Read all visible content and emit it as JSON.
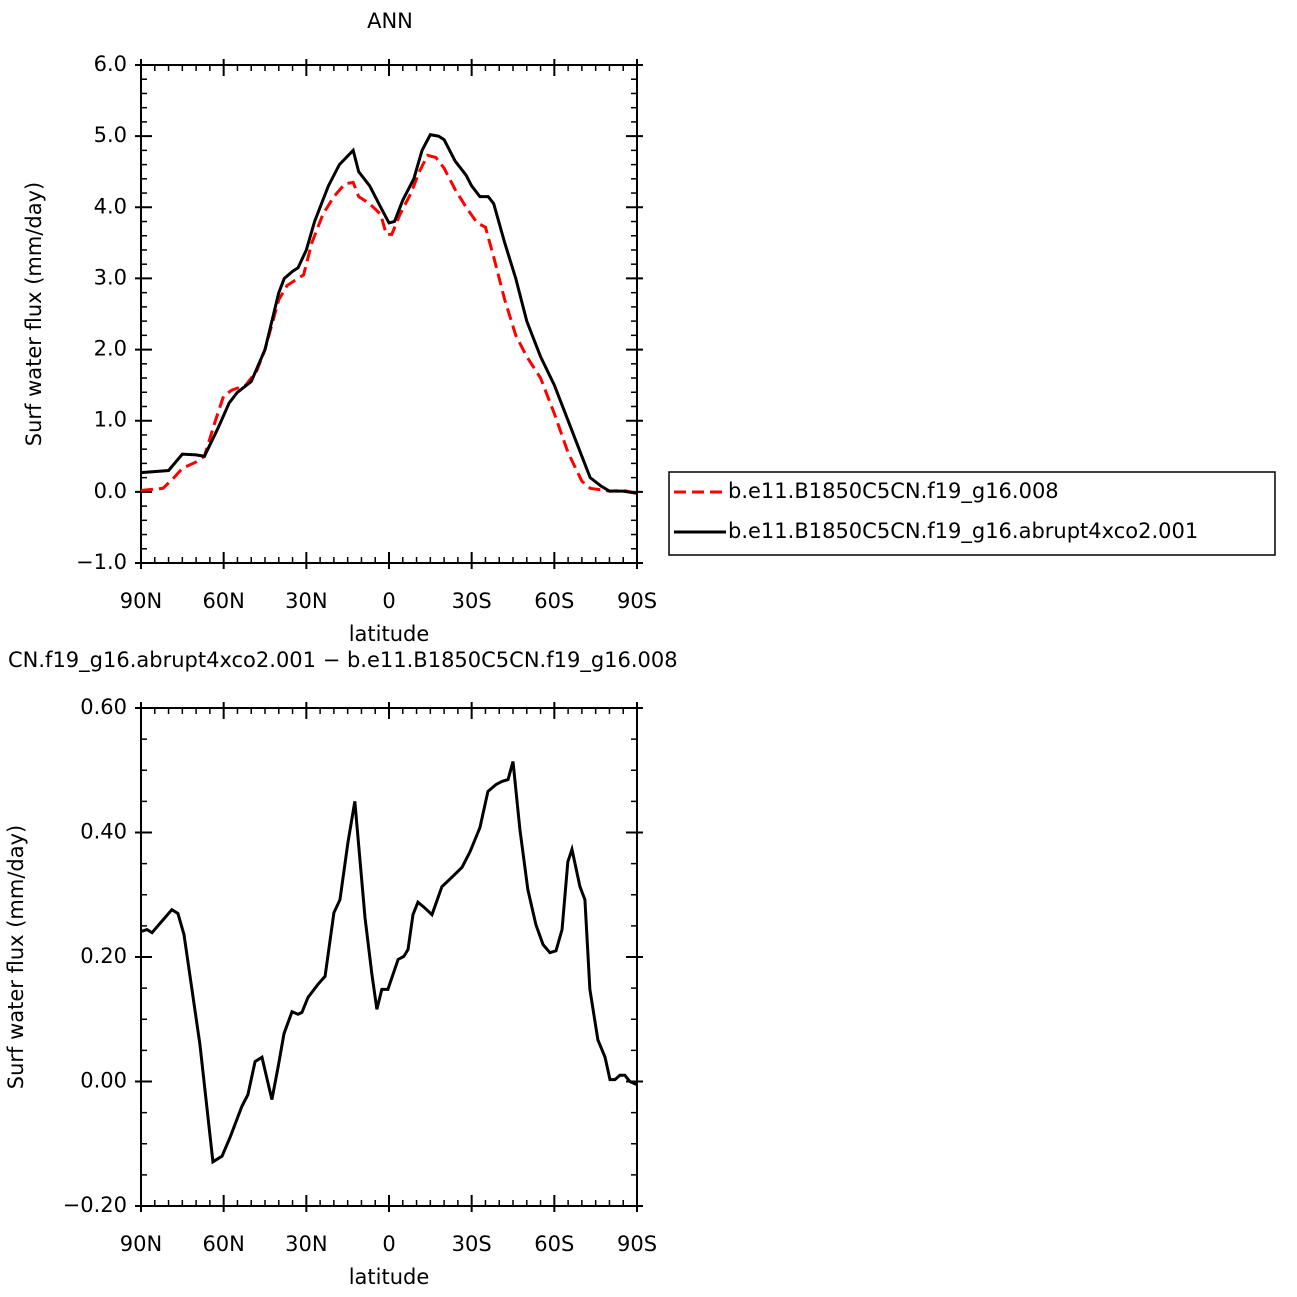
{
  "chart_data": [
    {
      "type": "line",
      "title": "ANN",
      "xlabel": "latitude",
      "ylabel": "Surf water flux (mm/day)",
      "xlim": [
        90,
        -90
      ],
      "xticks": [
        {
          "value": 90,
          "label": "90N"
        },
        {
          "value": 60,
          "label": "60N"
        },
        {
          "value": 30,
          "label": "30N"
        },
        0,
        {
          "value": -30,
          "label": "30S"
        },
        {
          "value": -60,
          "label": "60S"
        },
        {
          "value": -90,
          "label": "90S"
        }
      ],
      "ylim": [
        -1,
        6
      ],
      "yticks": [
        {
          "value": -1,
          "label": "−1.0"
        },
        {
          "value": 0,
          "label": "0.0"
        },
        {
          "value": 1,
          "label": "1.0"
        },
        {
          "value": 2,
          "label": "2.0"
        },
        {
          "value": 3,
          "label": "3.0"
        },
        {
          "value": 4,
          "label": "4.0"
        },
        {
          "value": 5,
          "label": "5.0"
        },
        {
          "value": 6,
          "label": "6.0"
        }
      ],
      "legend": "right",
      "series": [
        {
          "name": "b.e11.B1850C5CN.f19_g16.008",
          "color": "#ff0000",
          "line_style": "dashed",
          "x": [
            90,
            82,
            78,
            75,
            70,
            67,
            63,
            60,
            57,
            52,
            48,
            45,
            40,
            37,
            33,
            31,
            28,
            24,
            20,
            16,
            13,
            11,
            7,
            3,
            1,
            -1,
            -4,
            -8,
            -11,
            -14,
            -17,
            -20,
            -24,
            -28,
            -32,
            -35,
            -38,
            -42,
            -46,
            -50,
            -55,
            -60,
            -65,
            -70,
            -73,
            -80,
            -85,
            -90
          ],
          "values": [
            0.02,
            0.05,
            0.2,
            0.33,
            0.42,
            0.5,
            1.0,
            1.35,
            1.43,
            1.5,
            1.7,
            2.0,
            2.7,
            2.9,
            3.0,
            3.05,
            3.5,
            3.9,
            4.15,
            4.33,
            4.35,
            4.15,
            4.05,
            3.9,
            3.62,
            3.62,
            3.9,
            4.2,
            4.5,
            4.73,
            4.7,
            4.55,
            4.25,
            4.0,
            3.78,
            3.72,
            3.3,
            2.7,
            2.2,
            1.9,
            1.6,
            1.1,
            0.55,
            0.15,
            0.05,
            0.01,
            0.02,
            -0.02
          ]
        },
        {
          "name": "b.e11.B1850C5CN.f19_g16.abrupt4xco2.001",
          "color": "#000000",
          "line_style": "solid",
          "x": [
            90,
            80,
            75,
            70,
            67,
            62,
            58,
            55,
            50,
            45,
            40,
            38,
            35,
            33,
            30,
            27,
            22,
            18,
            13,
            11,
            7,
            3,
            0,
            -2,
            -5,
            -9,
            -12,
            -15,
            -18,
            -20,
            -24,
            -28,
            -30,
            -33,
            -36,
            -38,
            -42,
            -46,
            -50,
            -55,
            -60,
            -65,
            -70,
            -73,
            -77,
            -80,
            -85,
            -90
          ],
          "values": [
            0.27,
            0.3,
            0.53,
            0.52,
            0.5,
            0.9,
            1.25,
            1.4,
            1.55,
            2.0,
            2.8,
            3.0,
            3.1,
            3.15,
            3.4,
            3.8,
            4.3,
            4.6,
            4.8,
            4.5,
            4.3,
            4.0,
            3.78,
            3.8,
            4.1,
            4.4,
            4.8,
            5.02,
            5.0,
            4.95,
            4.65,
            4.45,
            4.3,
            4.15,
            4.15,
            4.05,
            3.5,
            3.0,
            2.4,
            1.9,
            1.5,
            1.0,
            0.5,
            0.2,
            0.08,
            0.01,
            0.01,
            -0.02
          ]
        }
      ]
    },
    {
      "type": "line",
      "title": "CN.f19_g16.abrupt4xco2.001 − b.e11.B1850C5CN.f19_g16.008",
      "xlabel": "latitude",
      "ylabel": "Surf water flux (mm/day)",
      "xlim": [
        90,
        -90
      ],
      "xticks": [
        {
          "value": 90,
          "label": "90N"
        },
        {
          "value": 60,
          "label": "60N"
        },
        {
          "value": 30,
          "label": "30N"
        },
        0,
        {
          "value": -30,
          "label": "30S"
        },
        {
          "value": -60,
          "label": "60S"
        },
        {
          "value": -90,
          "label": "90S"
        }
      ],
      "ylim": [
        -0.2,
        0.6
      ],
      "yticks": [
        {
          "value": -0.2,
          "label": "−0.20"
        },
        {
          "value": 0,
          "label": "0.00"
        },
        {
          "value": 0.2,
          "label": "0.20"
        },
        {
          "value": 0.4,
          "label": "0.40"
        },
        {
          "value": 0.6,
          "label": "0.60"
        }
      ],
      "series": [
        {
          "color": "#000000",
          "line_style": "solid",
          "x": [
            90,
            87.8,
            86,
            83.1,
            78.8,
            76.6,
            74.4,
            68.6,
            63.9,
            60.6,
            57.7,
            53.4,
            51.2,
            48.6,
            46.1,
            42.5,
            40.3,
            38.1,
            35.2,
            33,
            31.6,
            29.4,
            25.8,
            23.2,
            20,
            17.8,
            14.9,
            12.4,
            8.7,
            6.2,
            4.4,
            2.6,
            0.4,
            -3.3,
            -5.4,
            -6.9,
            -8.7,
            -10.5,
            -12.7,
            -15.6,
            -19.2,
            -22.8,
            -26.5,
            -29.4,
            -33,
            -35.9,
            -38.8,
            -41,
            -43.2,
            -45,
            -47.5,
            -50.4,
            -53.3,
            -55.9,
            -58.4,
            -60.6,
            -62.8,
            -64.9,
            -66.4,
            -69.3,
            -71.1,
            -72.9,
            -75.8,
            -78.4,
            -80.2,
            -82,
            -83.8,
            -85.6,
            -87.4,
            -90
          ],
          "values": [
            0.241,
            0.244,
            0.239,
            0.254,
            0.276,
            0.27,
            0.236,
            0.059,
            -0.129,
            -0.12,
            -0.09,
            -0.04,
            -0.021,
            0.032,
            0.039,
            -0.029,
            0.022,
            0.077,
            0.112,
            0.108,
            0.111,
            0.135,
            0.156,
            0.169,
            0.271,
            0.292,
            0.384,
            0.45,
            0.263,
            0.172,
            0.116,
            0.148,
            0.148,
            0.196,
            0.201,
            0.212,
            0.268,
            0.288,
            0.28,
            0.268,
            0.313,
            0.328,
            0.344,
            0.369,
            0.408,
            0.466,
            0.477,
            0.482,
            0.485,
            0.514,
            0.405,
            0.308,
            0.252,
            0.22,
            0.207,
            0.21,
            0.244,
            0.353,
            0.373,
            0.313,
            0.292,
            0.148,
            0.067,
            0.039,
            0.003,
            0.003,
            0.01,
            0.01,
            0,
            -0.005
          ]
        }
      ]
    }
  ]
}
